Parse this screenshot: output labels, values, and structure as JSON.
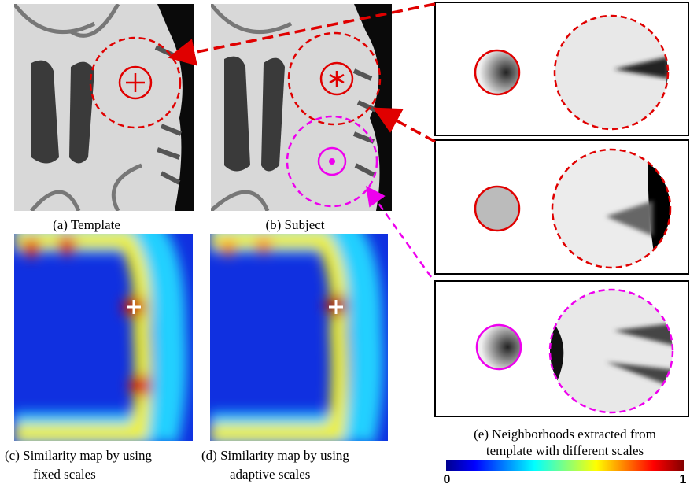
{
  "figure": {
    "panels": [
      {
        "caption": [
          "(a) Template"
        ]
      },
      {
        "caption": [
          "(b) Subject"
        ]
      },
      {
        "caption": [
          "(c) Similarity map by using",
          "fixed scales"
        ]
      },
      {
        "caption": [
          "(d) Similarity map by using",
          "adaptive scales"
        ]
      },
      {
        "caption": [
          "(e) Neighborhoods extracted from",
          "template with different scales"
        ]
      }
    ],
    "colorbar": {
      "min_label": "0",
      "max_label": "1"
    }
  }
}
